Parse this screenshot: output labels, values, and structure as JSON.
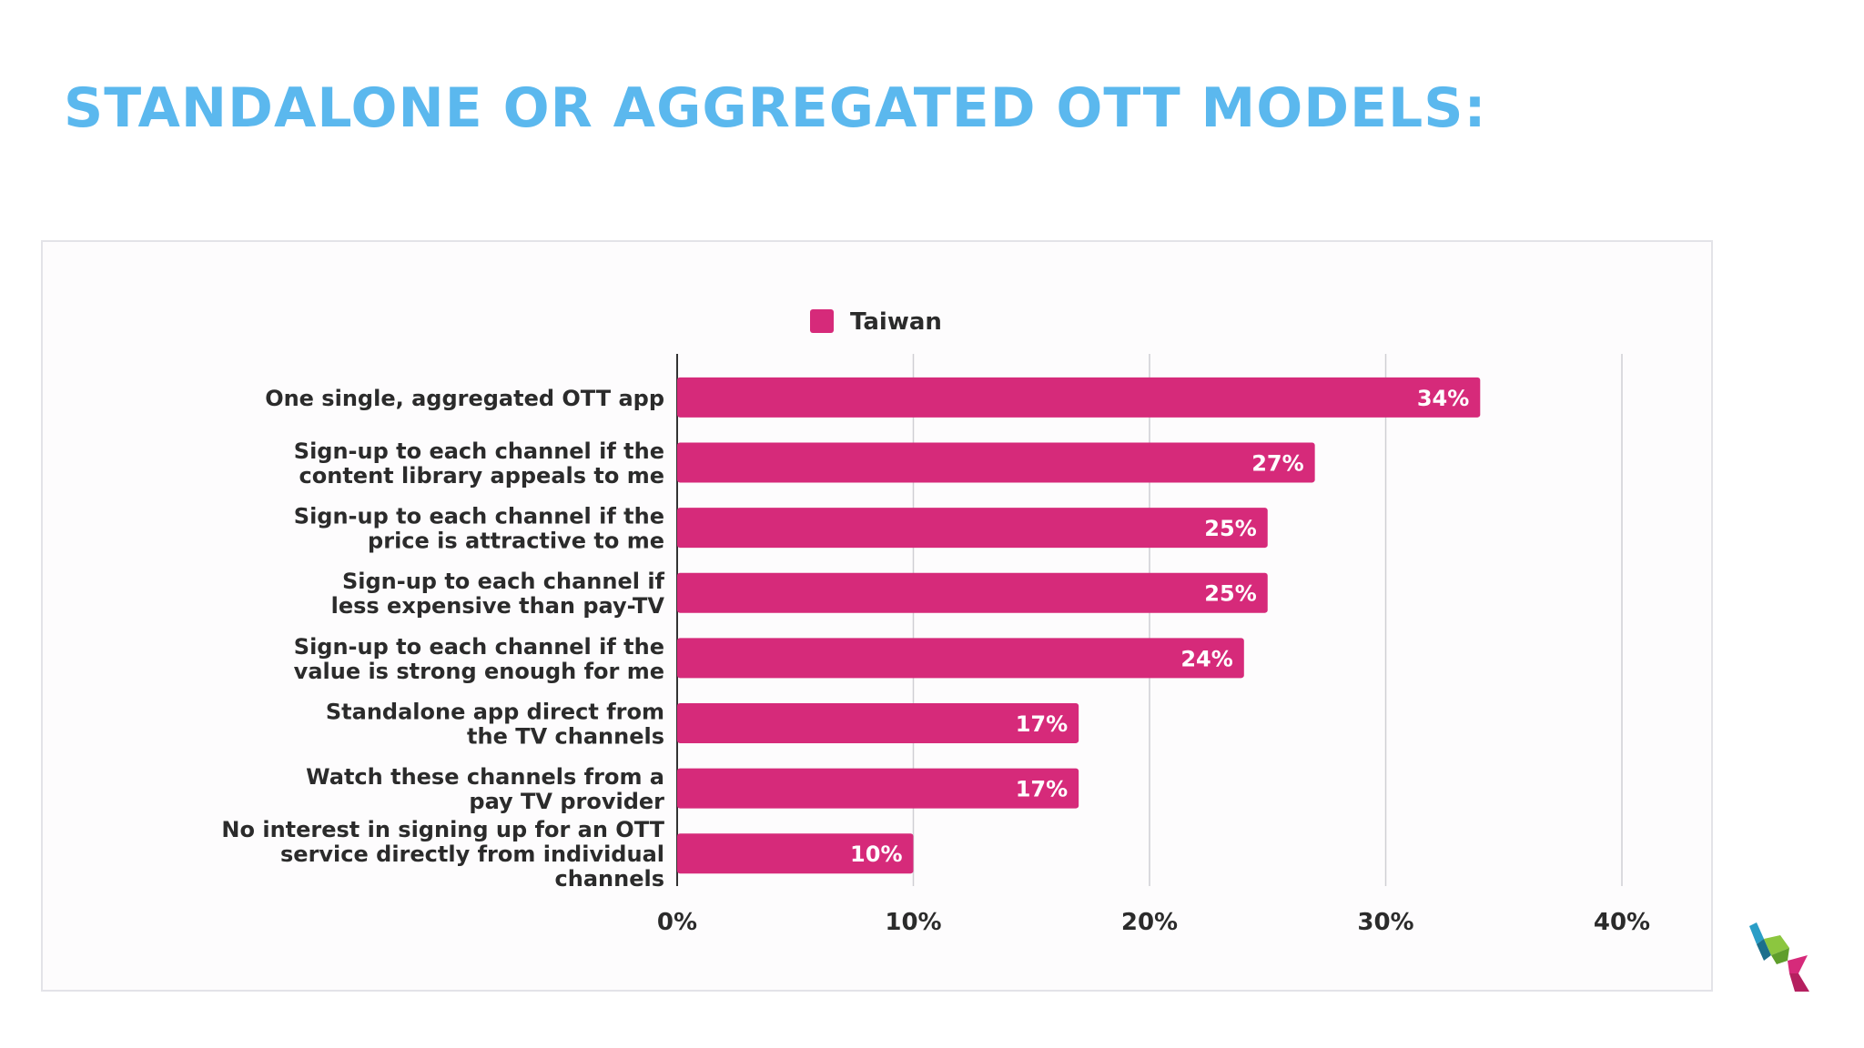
{
  "slide": {
    "title": "STANDALONE OR AGGREGATED OTT MODELS:"
  },
  "chart_data": {
    "type": "bar",
    "orientation": "horizontal",
    "title": "",
    "xlabel": "",
    "ylabel": "",
    "xlim": [
      0,
      40
    ],
    "xticks": [
      "0%",
      "10%",
      "20%",
      "30%",
      "40%"
    ],
    "grid": true,
    "legend": "top-center",
    "categories": [
      "One single, aggregated OTT app",
      "Sign-up to each channel if the content library appeals to me",
      "Sign-up to each channel if the price is attractive to me",
      "Sign-up to each channel if less expensive than pay-TV",
      "Sign-up to each channel if the value is strong enough for me",
      "Standalone app direct from the TV channels",
      "Watch these channels from a pay TV provider",
      "No interest in signing up for an OTT service directly from individual channels"
    ],
    "series": [
      {
        "name": "Taiwan",
        "color": "#d62a7a",
        "values": [
          34,
          27,
          25,
          25,
          24,
          17,
          17,
          10
        ],
        "labels": [
          "34%",
          "27%",
          "25%",
          "25%",
          "24%",
          "17%",
          "17%",
          "10%"
        ]
      }
    ]
  },
  "colors": {
    "title": "#5bb8ee",
    "bar": "#d62a7a",
    "text": "#2b2b2b",
    "grid": "#cfcfd4"
  },
  "logo": {
    "icon": "cube-stack-logo",
    "colors": [
      "#2a9ec7",
      "#1c6f8c",
      "#8cc63f",
      "#d62a7a"
    ]
  }
}
